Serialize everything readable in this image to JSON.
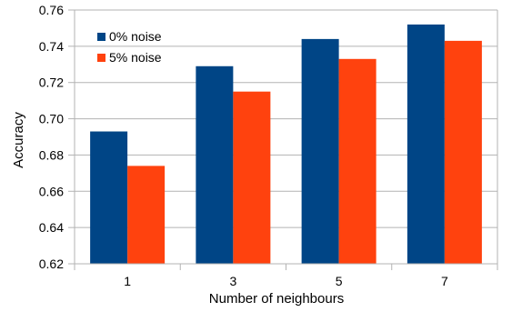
{
  "chart_data": {
    "type": "bar",
    "xlabel": "Number of neighbours",
    "ylabel": "Accuracy",
    "categories": [
      "1",
      "3",
      "5",
      "7"
    ],
    "ylim": [
      0.62,
      0.76
    ],
    "yticks": [
      "0.62",
      "0.64",
      "0.66",
      "0.68",
      "0.70",
      "0.72",
      "0.74",
      "0.76"
    ],
    "grid": "horizontal",
    "legend_position": "top-left",
    "series": [
      {
        "name": "0% noise",
        "color": "#004586",
        "values": [
          0.693,
          0.729,
          0.744,
          0.752
        ]
      },
      {
        "name": "5% noise",
        "color": "#ff420e",
        "values": [
          0.674,
          0.715,
          0.733,
          0.743
        ]
      }
    ]
  }
}
